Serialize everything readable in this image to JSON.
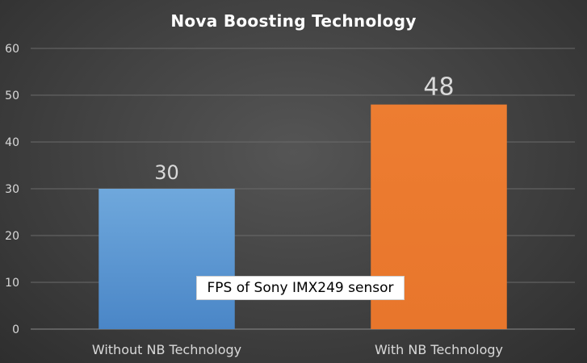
{
  "chart_data": {
    "type": "bar",
    "title": "Nova Boosting Technology",
    "categories": [
      "Without NB Technology",
      "With NB Technology"
    ],
    "values": [
      30,
      48
    ],
    "data_labels": [
      "30",
      "48"
    ],
    "y_ticks": [
      "0",
      "10",
      "20",
      "30",
      "40",
      "50",
      "60"
    ],
    "ylim": [
      0,
      60
    ],
    "xlabel": "",
    "ylabel": "",
    "grid": true,
    "annotation": "FPS of Sony IMX249 sensor",
    "colors": {
      "background": "#404040",
      "bar_without": "#5b9bd5",
      "bar_with": "#ed7d31",
      "grid": "#6a6a6a",
      "text": "#d9d9d9"
    }
  }
}
